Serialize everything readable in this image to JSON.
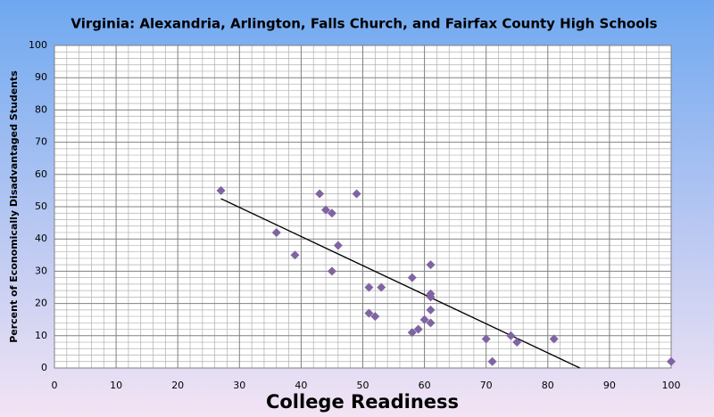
{
  "chart_data": {
    "type": "scatter",
    "title": "Virginia: Alexandria, Arlington, Falls Church, and Fairfax County High Schools",
    "xlabel": "College Readiness",
    "ylabel": "Percent of Economically Disadvantaged Students",
    "x": [
      27,
      36,
      39,
      43,
      44,
      45,
      45,
      46,
      49,
      51,
      51,
      52,
      53,
      58,
      58,
      59,
      60,
      61,
      61,
      61,
      61,
      61,
      70,
      71,
      74,
      75,
      81,
      100
    ],
    "values": [
      55,
      42,
      35,
      54,
      49,
      48,
      30,
      38,
      54,
      25,
      17,
      16,
      25,
      28,
      11,
      12,
      15,
      32,
      23,
      22,
      18,
      14,
      9,
      2,
      10,
      8,
      9,
      2
    ],
    "color": "#8064a2",
    "trendline": {
      "x": [
        27,
        85.2
      ],
      "y": [
        52.5,
        0
      ],
      "color": "#000000"
    },
    "xlim": [
      0,
      100
    ],
    "ylim": [
      0,
      100
    ],
    "xticks": [
      0,
      10,
      20,
      30,
      40,
      50,
      60,
      70,
      80,
      90,
      100
    ],
    "yticks": [
      0,
      10,
      20,
      30,
      40,
      50,
      60,
      70,
      80,
      90,
      100
    ],
    "xminor": [
      2,
      4,
      6,
      8,
      12,
      14,
      16,
      18,
      22,
      24,
      26,
      28,
      32,
      34,
      36,
      38,
      42,
      44,
      46,
      48,
      52,
      54,
      56,
      58,
      62,
      64,
      66,
      68,
      72,
      74,
      76,
      78,
      82,
      84,
      86,
      88,
      92,
      94,
      96,
      98
    ],
    "yminor": [
      2,
      4,
      6,
      8,
      12,
      14,
      16,
      18,
      22,
      24,
      26,
      28,
      32,
      34,
      36,
      38,
      42,
      44,
      46,
      48,
      52,
      54,
      56,
      58,
      62,
      64,
      66,
      68,
      72,
      74,
      76,
      78,
      82,
      84,
      86,
      88,
      92,
      94,
      96,
      98
    ],
    "grid": true
  }
}
